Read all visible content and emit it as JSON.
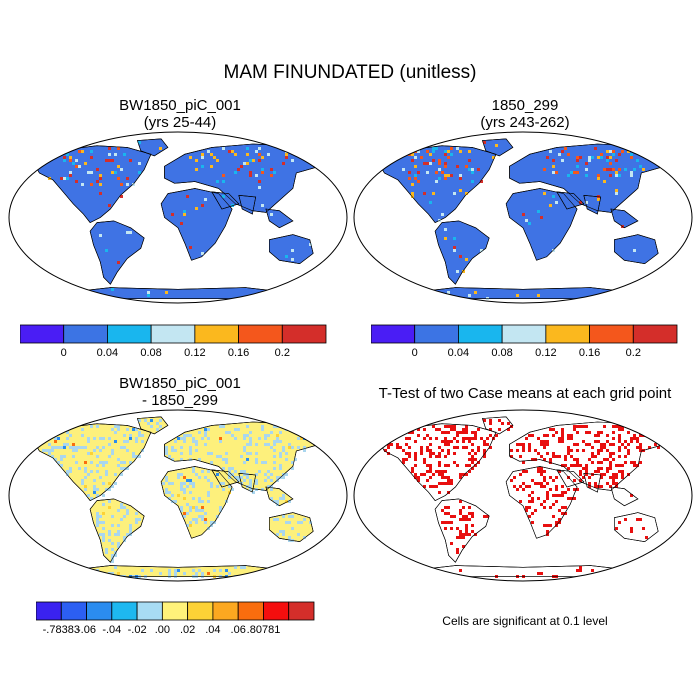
{
  "main_title": "MAM FINUNDATED (unitless)",
  "panels": [
    {
      "id": "p1",
      "title_line1": "BW1850_piC_001",
      "title_line2": "(yrs 25-44)",
      "style": "blue-field"
    },
    {
      "id": "p2",
      "title_line1": "1850_299",
      "title_line2": "(yrs 243-262)",
      "style": "blue-field"
    },
    {
      "id": "p3",
      "title_line1": "BW1850_piC_001",
      "title_line2": "- 1850_299",
      "style": "diff-field"
    },
    {
      "id": "p4",
      "title_line1": "T-Test of two Case means at each grid point",
      "title_line2": "",
      "style": "significance"
    }
  ],
  "colorbar_top": {
    "colors": [
      "#4a1df5",
      "#3c74e4",
      "#19b6ee",
      "#c3e6f2",
      "#fbb81e",
      "#f4571c",
      "#d42e2a"
    ],
    "labels": [
      "0",
      "0.04",
      "0.08",
      "0.12",
      "0.16",
      "0.2"
    ]
  },
  "colorbar_diff": {
    "colors": [
      "#3a22f0",
      "#2c5ff2",
      "#2b8cef",
      "#1eb8f0",
      "#a8dcf3",
      "#fff27a",
      "#fdd236",
      "#fca820",
      "#f96d0e",
      "#f50e0e",
      "#d42e2a"
    ],
    "labels": [
      "-.78383",
      "-.06",
      "-.04",
      "-.02",
      ".00",
      ".02",
      ".04",
      ".06",
      ".80781"
    ]
  },
  "significance_note": "Cells are significant at 0.1 level",
  "colors": {
    "land_blue": "#3f73e4",
    "diff_yellow": "#fdf07c",
    "diff_lightblue": "#a9d6ef",
    "sig_red": "#e81010",
    "outline": "#000000"
  }
}
